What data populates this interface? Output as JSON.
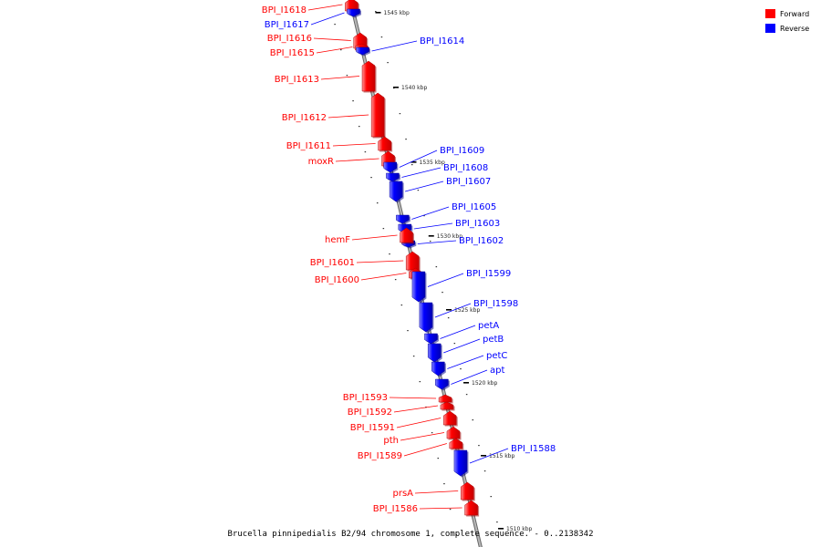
{
  "legend": {
    "forward": {
      "label": "Forward",
      "color": "#ff0000"
    },
    "reverse": {
      "label": "Reverse",
      "color": "#0000ff"
    }
  },
  "caption": "Brucella pinnipedialis B2/94 chromosome 1, complete sequence. - 0..2138342",
  "backbone_color": "#888888",
  "ticks": [
    "1545 kbp",
    "1540 kbp",
    "1535 kbp",
    "1530 kbp",
    "1525 kbp",
    "1520 kbp",
    "1515 kbp",
    "1510 kbp"
  ],
  "genes": [
    {
      "name": "BPI_I1618",
      "strand": "forward"
    },
    {
      "name": "BPI_I1617",
      "strand": "reverse"
    },
    {
      "name": "BPI_I1616",
      "strand": "forward"
    },
    {
      "name": "BPI_I1615",
      "strand": "forward"
    },
    {
      "name": "BPI_I1614",
      "strand": "reverse"
    },
    {
      "name": "BPI_I1613",
      "strand": "forward"
    },
    {
      "name": "BPI_I1612",
      "strand": "forward"
    },
    {
      "name": "BPI_I1611",
      "strand": "forward"
    },
    {
      "name": "moxR",
      "strand": "forward"
    },
    {
      "name": "BPI_I1609",
      "strand": "reverse"
    },
    {
      "name": "BPI_I1608",
      "strand": "reverse"
    },
    {
      "name": "BPI_I1607",
      "strand": "reverse"
    },
    {
      "name": "BPI_I1605",
      "strand": "reverse"
    },
    {
      "name": "BPI_I1603",
      "strand": "reverse"
    },
    {
      "name": "BPI_I1602",
      "strand": "reverse"
    },
    {
      "name": "hemF",
      "strand": "forward"
    },
    {
      "name": "BPI_I1601",
      "strand": "forward"
    },
    {
      "name": "BPI_I1600",
      "strand": "forward"
    },
    {
      "name": "BPI_I1599",
      "strand": "reverse"
    },
    {
      "name": "BPI_I1598",
      "strand": "reverse"
    },
    {
      "name": "petA",
      "strand": "reverse"
    },
    {
      "name": "petB",
      "strand": "reverse"
    },
    {
      "name": "petC",
      "strand": "reverse"
    },
    {
      "name": "apt",
      "strand": "reverse"
    },
    {
      "name": "BPI_I1593",
      "strand": "forward"
    },
    {
      "name": "BPI_I1592",
      "strand": "forward"
    },
    {
      "name": "BPI_I1591",
      "strand": "forward"
    },
    {
      "name": "pth",
      "strand": "forward"
    },
    {
      "name": "BPI_I1589",
      "strand": "forward"
    },
    {
      "name": "BPI_I1588",
      "strand": "reverse"
    },
    {
      "name": "prsA",
      "strand": "forward"
    },
    {
      "name": "BPI_I1586",
      "strand": "forward"
    }
  ]
}
